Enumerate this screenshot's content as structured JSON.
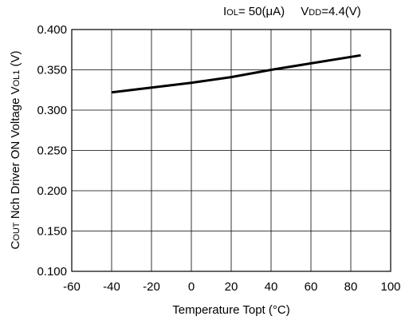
{
  "chart_data": {
    "type": "line",
    "conditions": {
      "iol_symbol": "I",
      "iol_sub": "OL",
      "iol_value": "= 50(μA)",
      "vdd_symbol": "V",
      "vdd_sub": "DD",
      "vdd_value": "=4.4(V)"
    },
    "xlabel": "Temperature Topt (°C)",
    "ylabel_parts": {
      "c": "C",
      "out": "OUT",
      "mid": " Nch Driver ON Voltage V",
      "sub": "OL1",
      "unit": " (V)"
    },
    "xlim": [
      -60,
      100
    ],
    "ylim": [
      0.1,
      0.4
    ],
    "x_ticks": [
      -60,
      -40,
      -20,
      0,
      20,
      40,
      60,
      80,
      100
    ],
    "x_tick_labels": [
      "-60",
      "-40",
      "-20",
      "0",
      "20",
      "40",
      "60",
      "80",
      "100"
    ],
    "y_ticks": [
      0.1,
      0.15,
      0.2,
      0.25,
      0.3,
      0.35,
      0.4
    ],
    "y_tick_labels": [
      "0.100",
      "0.150",
      "0.200",
      "0.250",
      "0.300",
      "0.350",
      "0.400"
    ],
    "grid": true,
    "series": [
      {
        "x": [
          -40,
          -20,
          0,
          20,
          40,
          60,
          85
        ],
        "y": [
          0.322,
          0.328,
          0.334,
          0.341,
          0.35,
          0.358,
          0.368
        ],
        "color": "#000000"
      }
    ]
  }
}
